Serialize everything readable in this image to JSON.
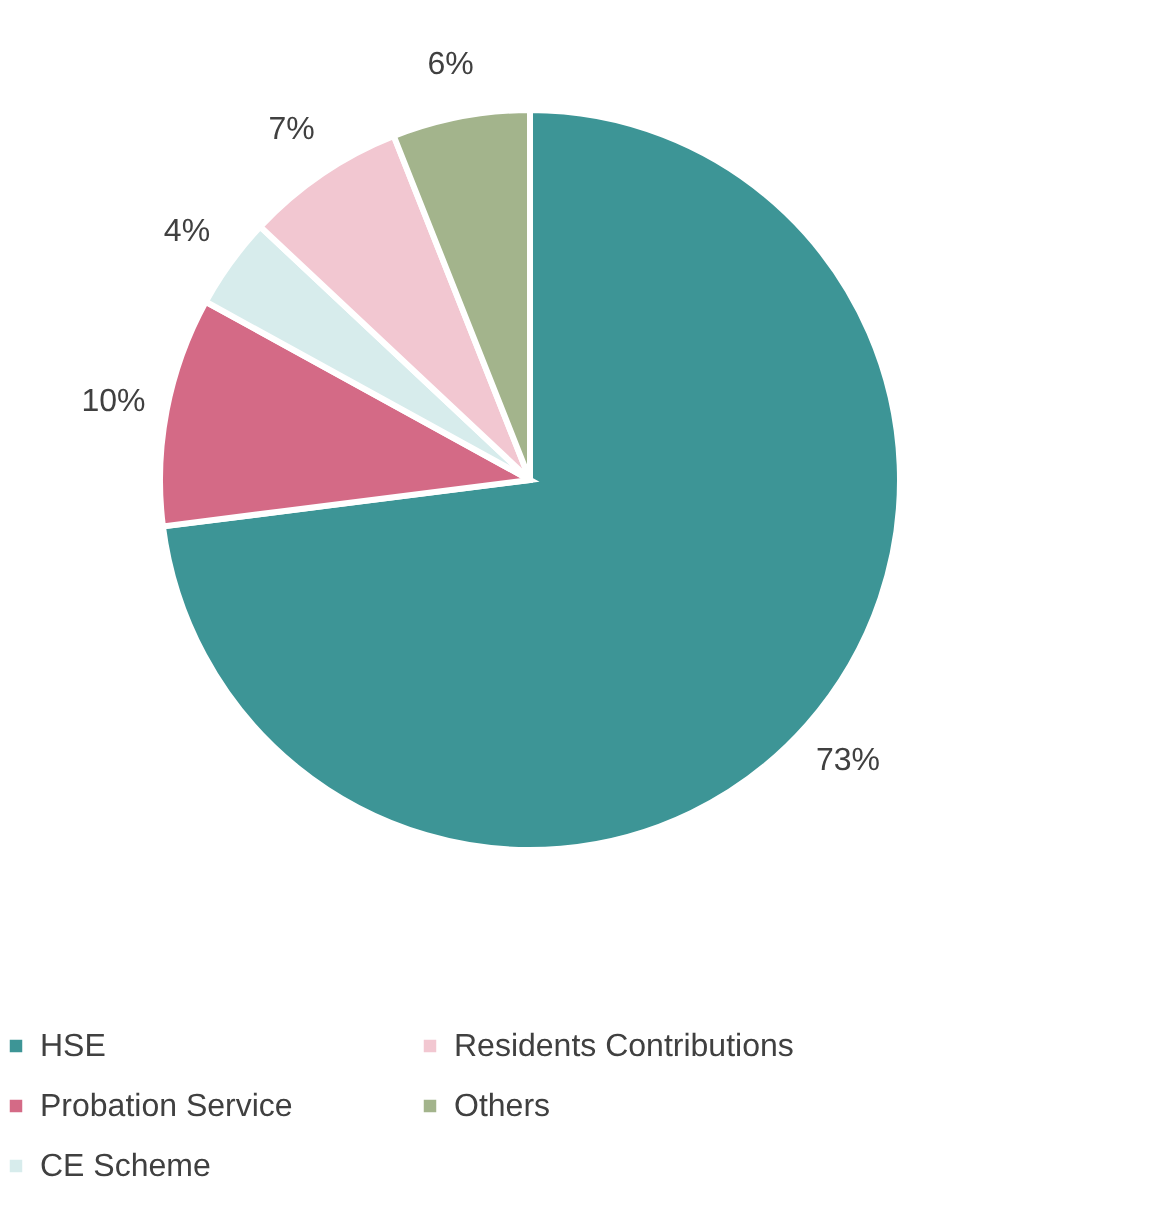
{
  "chart_data": {
    "type": "pie",
    "categories": [
      "HSE",
      "Probation Service",
      "CE Scheme",
      "Residents Contributions",
      "Others"
    ],
    "values": [
      73,
      10,
      4,
      7,
      6
    ],
    "colors": [
      "#3d9596",
      "#d46a86",
      "#d7ecec",
      "#f2c7d1",
      "#a3b48c"
    ],
    "value_labels": [
      "73%",
      "10%",
      "4%",
      "7%",
      "6%"
    ],
    "legend": "bottom"
  }
}
